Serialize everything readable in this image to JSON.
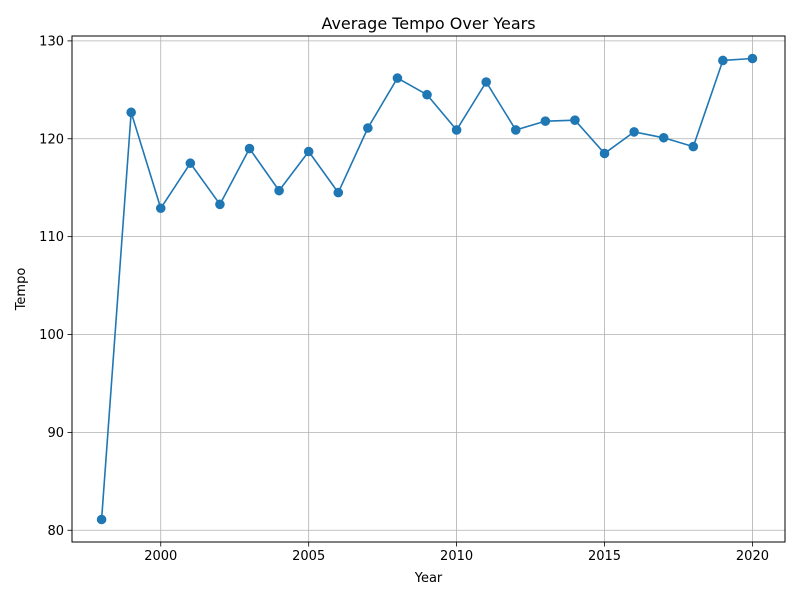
{
  "chart_data": {
    "type": "line",
    "title": "Average Tempo Over Years",
    "xlabel": "Year",
    "ylabel": "Tempo",
    "xlim": [
      1997.0,
      2021.1
    ],
    "ylim": [
      78.8,
      130.5
    ],
    "xticks": [
      2000,
      2005,
      2010,
      2015,
      2020
    ],
    "yticks": [
      80,
      90,
      100,
      110,
      120,
      130
    ],
    "grid": true,
    "legend": "none",
    "series": [
      {
        "color": "#1f77b4",
        "marker": "circle",
        "x": [
          1998,
          1999,
          2000,
          2001,
          2002,
          2003,
          2004,
          2005,
          2006,
          2007,
          2008,
          2009,
          2010,
          2011,
          2012,
          2013,
          2014,
          2015,
          2016,
          2017,
          2018,
          2019,
          2020
        ],
        "y": [
          81.1,
          122.7,
          112.9,
          117.5,
          113.3,
          119.0,
          114.7,
          118.7,
          114.5,
          121.1,
          126.2,
          124.5,
          120.9,
          125.8,
          120.9,
          121.8,
          121.9,
          118.5,
          120.7,
          120.1,
          119.2,
          128.0,
          128.2
        ]
      }
    ]
  }
}
